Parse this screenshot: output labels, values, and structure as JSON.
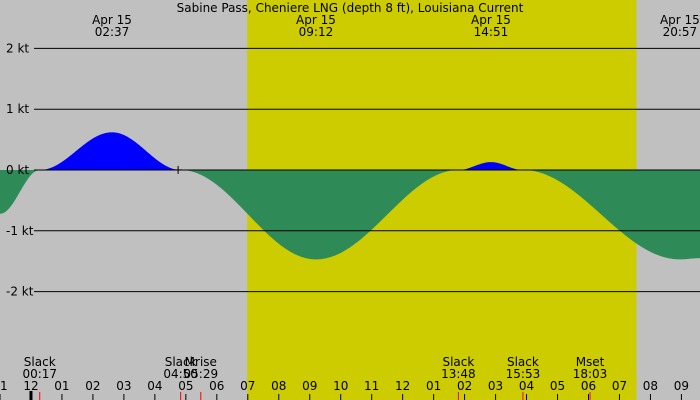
{
  "chart_data": {
    "type": "area",
    "title": "Sabine Pass, Cheniere LNG (depth 8 ft), Louisiana Current",
    "colors": {
      "background": "#c0c0c0",
      "daylight": "#cccc00",
      "flood": "#0000ff",
      "ebb": "#2e8b57",
      "grid": "#000000",
      "moon_marker": "#ff0000",
      "now_marker": "#000000"
    },
    "y_unit": "kt",
    "ylim": [
      -3.0,
      2.0
    ],
    "y_ticks": [
      {
        "value": 2,
        "label": "2 kt"
      },
      {
        "value": 1,
        "label": "1 kt"
      },
      {
        "value": 0,
        "label": "0 kt"
      },
      {
        "value": -1,
        "label": "-1 kt"
      },
      {
        "value": -2,
        "label": "-2 kt"
      }
    ],
    "xlim_hours": [
      -1.0,
      21.6
    ],
    "x_ticks": [
      {
        "hour": -1,
        "label": "11"
      },
      {
        "hour": 0,
        "label": "12"
      },
      {
        "hour": 1,
        "label": "01"
      },
      {
        "hour": 2,
        "label": "02"
      },
      {
        "hour": 3,
        "label": "03"
      },
      {
        "hour": 4,
        "label": "04"
      },
      {
        "hour": 5,
        "label": "05"
      },
      {
        "hour": 6,
        "label": "06"
      },
      {
        "hour": 7,
        "label": "07"
      },
      {
        "hour": 8,
        "label": "08"
      },
      {
        "hour": 9,
        "label": "09"
      },
      {
        "hour": 10,
        "label": "10"
      },
      {
        "hour": 11,
        "label": "11"
      },
      {
        "hour": 12,
        "label": "12"
      },
      {
        "hour": 13,
        "label": "01"
      },
      {
        "hour": 14,
        "label": "02"
      },
      {
        "hour": 15,
        "label": "03"
      },
      {
        "hour": 16,
        "label": "04"
      },
      {
        "hour": 17,
        "label": "05"
      },
      {
        "hour": 18,
        "label": "06"
      },
      {
        "hour": 19,
        "label": "07"
      },
      {
        "hour": 20,
        "label": "08"
      },
      {
        "hour": 21,
        "label": "09"
      }
    ],
    "daylight": {
      "start_hour": 6.98,
      "end_hour": 19.55
    },
    "extremes": [
      {
        "date": "Apr 15",
        "time": "02:37",
        "hour": 2.617,
        "value": 0.62
      },
      {
        "date": "Apr 15",
        "time": "09:12",
        "hour": 9.2,
        "value": -1.47
      },
      {
        "date": "Apr 15",
        "time": "14:51",
        "hour": 14.85,
        "value": 0.13
      },
      {
        "date": "Apr 15",
        "time": "20:57",
        "hour": 20.95,
        "value": -1.47
      }
    ],
    "events": [
      {
        "label": "Slack",
        "time": "00:17",
        "hour": 0.283
      },
      {
        "label": "Slack",
        "time": "04:50",
        "hour": 4.833
      },
      {
        "label": "Mrise",
        "time": "05:29",
        "hour": 5.483
      },
      {
        "label": "Slack",
        "time": "13:48",
        "hour": 13.8
      },
      {
        "label": "Slack",
        "time": "15:53",
        "hour": 15.883
      },
      {
        "label": "Mset",
        "time": "18:03",
        "hour": 18.05
      }
    ],
    "series": [
      {
        "x_hours": [
          -1.0,
          0.283,
          2.617,
          4.833,
          9.2,
          13.8,
          14.85,
          15.883,
          20.95,
          21.6
        ],
        "values": [
          -0.72,
          0.0,
          0.62,
          0.0,
          -1.47,
          0.0,
          0.13,
          0.0,
          -1.47,
          -1.45
        ]
      }
    ],
    "current_hour": 4.75
  }
}
